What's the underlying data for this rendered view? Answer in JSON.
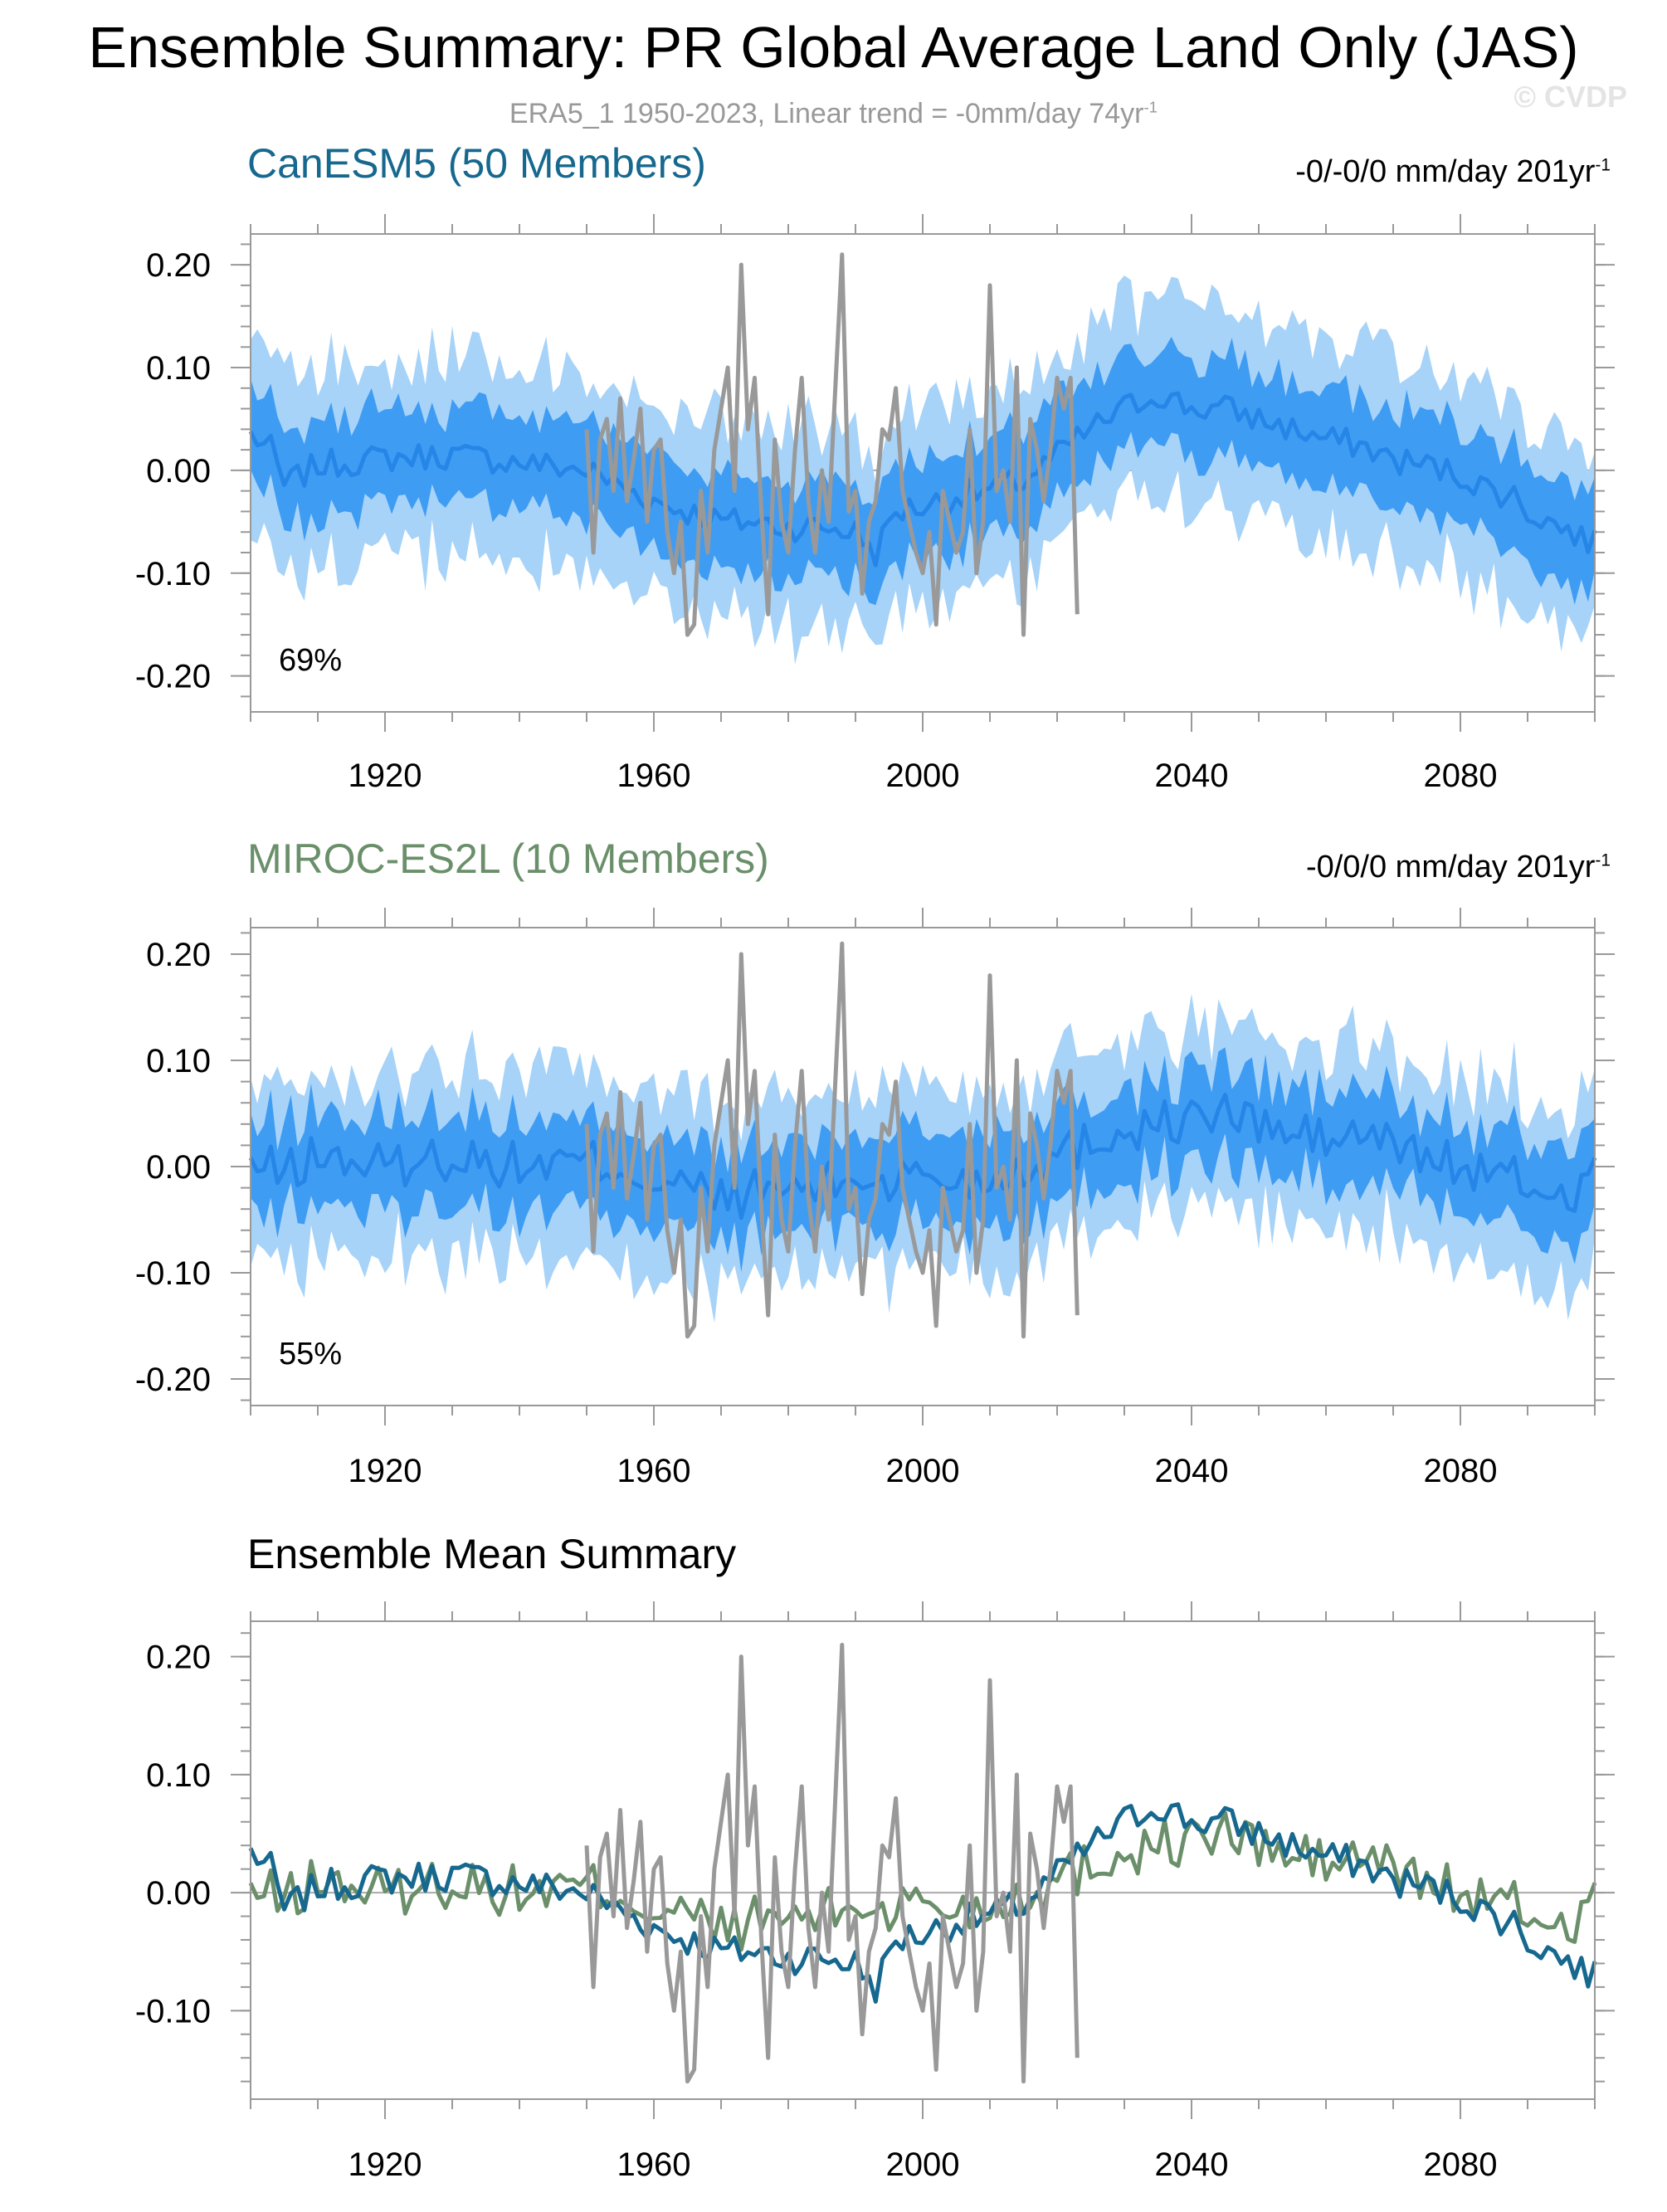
{
  "title": "Ensemble Summary: PR Global Average Land Only (JAS)",
  "subtitle": {
    "text": "ERA5_1 1950-2023, Linear trend = -0mm/day 74yr",
    "sup": "-1"
  },
  "copyright": "© CVDP",
  "colors": {
    "canesm5": "#16688f",
    "miroc": "#6a8f6a",
    "obs": "#999999",
    "band_outer": "#a7d3f8",
    "band_inner": "#3f9cf3",
    "mean_line": "#2586e8",
    "zero_line": "#aaaaaa"
  },
  "panels": [
    {
      "title": "CanESM5 (50 Members)",
      "trend": "-0/-0/0 mm/day 201yr",
      "trend_sup": "-1",
      "percent": "69%"
    },
    {
      "title": "MIROC-ES2L (10 Members)",
      "trend": "-0/0/0 mm/day 201yr",
      "trend_sup": "-1",
      "percent": "55%"
    },
    {
      "title": "Ensemble Mean Summary"
    }
  ],
  "chart_data": [
    {
      "type": "line",
      "title": "CanESM5 (50 Members)",
      "xlim": [
        1900,
        2100
      ],
      "ylim": [
        -0.235,
        0.23
      ],
      "xticks": [
        1920,
        1960,
        2000,
        2040,
        2080
      ],
      "xtick_labels": [
        "1920",
        "1960",
        "2000",
        "2040",
        "2080"
      ],
      "yticks": [
        0.2,
        0.1,
        0,
        -0.1,
        -0.2
      ],
      "ytick_labels": [
        "0.20",
        "0.10",
        "0.00",
        "-0.10",
        "-0.20"
      ],
      "series": [
        {
          "name": "CanESM5 ensemble mean",
          "knots": [
            [
              1900,
              0.035
            ],
            [
              1903,
              0.02
            ],
            [
              1905,
              -0.015
            ],
            [
              1910,
              0.005
            ],
            [
              1920,
              0.012
            ],
            [
              1930,
              0.015
            ],
            [
              1940,
              0.008
            ],
            [
              1950,
              0.0
            ],
            [
              1955,
              -0.015
            ],
            [
              1960,
              -0.03
            ],
            [
              1965,
              -0.04
            ],
            [
              1970,
              -0.05
            ],
            [
              1975,
              -0.05
            ],
            [
              1980,
              -0.055
            ],
            [
              1985,
              -0.055
            ],
            [
              1990,
              -0.06
            ],
            [
              1993,
              -0.08
            ],
            [
              1996,
              -0.04
            ],
            [
              2000,
              -0.035
            ],
            [
              2005,
              -0.025
            ],
            [
              2010,
              -0.02
            ],
            [
              2015,
              -0.01
            ],
            [
              2020,
              0.015
            ],
            [
              2025,
              0.04
            ],
            [
              2030,
              0.06
            ],
            [
              2035,
              0.075
            ],
            [
              2040,
              0.06
            ],
            [
              2045,
              0.06
            ],
            [
              2050,
              0.05
            ],
            [
              2055,
              0.04
            ],
            [
              2060,
              0.03
            ],
            [
              2065,
              0.025
            ],
            [
              2070,
              0.01
            ],
            [
              2075,
              0.005
            ],
            [
              2080,
              -0.005
            ],
            [
              2085,
              -0.02
            ],
            [
              2088,
              -0.025
            ],
            [
              2090,
              -0.04
            ],
            [
              2095,
              -0.055
            ],
            [
              2100,
              -0.072
            ]
          ]
        },
        {
          "name": "ERA5_1 observations 1950-2023",
          "source": "obs"
        }
      ]
    },
    {
      "type": "line",
      "title": "MIROC-ES2L (10 Members)",
      "xlim": [
        1900,
        2100
      ],
      "ylim": [
        -0.225,
        0.225
      ],
      "xticks": [
        1920,
        1960,
        2000,
        2040,
        2080
      ],
      "xtick_labels": [
        "1920",
        "1960",
        "2000",
        "2040",
        "2080"
      ],
      "yticks": [
        0.2,
        0.1,
        0,
        -0.1,
        -0.2
      ],
      "ytick_labels": [
        "0.20",
        "0.10",
        "0.00",
        "-0.10",
        "-0.20"
      ],
      "series": [
        {
          "name": "MIROC-ES2L ensemble mean",
          "knots": [
            [
              1900,
              0.0
            ],
            [
              1905,
              -0.005
            ],
            [
              1910,
              0.01
            ],
            [
              1920,
              0.0
            ],
            [
              1930,
              0.01
            ],
            [
              1940,
              0.0
            ],
            [
              1950,
              0.005
            ],
            [
              1955,
              0.0
            ],
            [
              1960,
              -0.015
            ],
            [
              1965,
              -0.02
            ],
            [
              1970,
              -0.03
            ],
            [
              1975,
              -0.025
            ],
            [
              1980,
              -0.02
            ],
            [
              1985,
              -0.02
            ],
            [
              1990,
              -0.01
            ],
            [
              1995,
              -0.015
            ],
            [
              2000,
              -0.005
            ],
            [
              2005,
              -0.015
            ],
            [
              2010,
              -0.01
            ],
            [
              2015,
              0.0
            ],
            [
              2020,
              0.01
            ],
            [
              2025,
              0.025
            ],
            [
              2030,
              0.035
            ],
            [
              2035,
              0.04
            ],
            [
              2040,
              0.045
            ],
            [
              2045,
              0.05
            ],
            [
              2050,
              0.04
            ],
            [
              2055,
              0.03
            ],
            [
              2060,
              0.025
            ],
            [
              2065,
              0.03
            ],
            [
              2070,
              0.02
            ],
            [
              2075,
              0.01
            ],
            [
              2080,
              0.0
            ],
            [
              2085,
              -0.01
            ],
            [
              2090,
              -0.015
            ],
            [
              2095,
              -0.03
            ],
            [
              2100,
              -0.005
            ]
          ]
        },
        {
          "name": "ERA5_1 observations 1950-2023",
          "source": "obs"
        }
      ]
    },
    {
      "type": "line",
      "title": "Ensemble Mean Summary",
      "xlim": [
        1900,
        2100
      ],
      "ylim": [
        -0.175,
        0.23
      ],
      "xticks": [
        1920,
        1960,
        2000,
        2040,
        2080
      ],
      "xtick_labels": [
        "1920",
        "1960",
        "2000",
        "2040",
        "2080"
      ],
      "yticks": [
        0.2,
        0.1,
        0,
        -0.1
      ],
      "ytick_labels": [
        "0.20",
        "0.10",
        "0.00",
        "-0.10"
      ],
      "series": [
        {
          "name": "CanESM5 ensemble mean",
          "color": "canesm5"
        },
        {
          "name": "MIROC-ES2L ensemble mean",
          "color": "miroc"
        },
        {
          "name": "ERA5_1 observations",
          "source": "obs"
        }
      ]
    }
  ],
  "obs_knots": [
    [
      1950,
      0.04
    ],
    [
      1951,
      -0.08
    ],
    [
      1952,
      0.03
    ],
    [
      1953,
      0.05
    ],
    [
      1954,
      -0.02
    ],
    [
      1955,
      0.07
    ],
    [
      1956,
      -0.03
    ],
    [
      1957,
      0.01
    ],
    [
      1958,
      0.06
    ],
    [
      1959,
      -0.05
    ],
    [
      1960,
      0.02
    ],
    [
      1961,
      0.03
    ],
    [
      1962,
      -0.06
    ],
    [
      1963,
      -0.1
    ],
    [
      1964,
      -0.05
    ],
    [
      1965,
      -0.16
    ],
    [
      1966,
      -0.15
    ],
    [
      1967,
      -0.02
    ],
    [
      1968,
      -0.08
    ],
    [
      1969,
      0.02
    ],
    [
      1970,
      0.06
    ],
    [
      1971,
      0.1
    ],
    [
      1972,
      -0.02
    ],
    [
      1973,
      0.2
    ],
    [
      1974,
      0.04
    ],
    [
      1975,
      0.09
    ],
    [
      1976,
      -0.04
    ],
    [
      1977,
      -0.14
    ],
    [
      1978,
      0.03
    ],
    [
      1979,
      -0.05
    ],
    [
      1980,
      -0.08
    ],
    [
      1981,
      0.02
    ],
    [
      1982,
      0.09
    ],
    [
      1983,
      -0.03
    ],
    [
      1984,
      -0.08
    ],
    [
      1985,
      0.0
    ],
    [
      1986,
      -0.05
    ],
    [
      1987,
      0.08
    ],
    [
      1988,
      0.21
    ],
    [
      1989,
      -0.04
    ],
    [
      1990,
      -0.02
    ],
    [
      1991,
      -0.12
    ],
    [
      1992,
      -0.05
    ],
    [
      1993,
      -0.03
    ],
    [
      1994,
      0.04
    ],
    [
      1995,
      0.03
    ],
    [
      1996,
      0.08
    ],
    [
      1997,
      -0.02
    ],
    [
      1998,
      -0.05
    ],
    [
      1999,
      -0.08
    ],
    [
      2000,
      -0.1
    ],
    [
      2001,
      -0.06
    ],
    [
      2002,
      -0.15
    ],
    [
      2003,
      -0.02
    ],
    [
      2004,
      -0.05
    ],
    [
      2005,
      -0.08
    ],
    [
      2006,
      -0.06
    ],
    [
      2007,
      0.04
    ],
    [
      2008,
      -0.1
    ],
    [
      2009,
      -0.05
    ],
    [
      2010,
      0.18
    ],
    [
      2011,
      -0.02
    ],
    [
      2012,
      0.0
    ],
    [
      2013,
      -0.05
    ],
    [
      2014,
      0.1
    ],
    [
      2015,
      -0.16
    ],
    [
      2016,
      0.05
    ],
    [
      2017,
      0.02
    ],
    [
      2018,
      -0.03
    ],
    [
      2019,
      0.02
    ],
    [
      2020,
      0.09
    ],
    [
      2021,
      0.06
    ],
    [
      2022,
      0.09
    ],
    [
      2023,
      -0.14
    ]
  ]
}
